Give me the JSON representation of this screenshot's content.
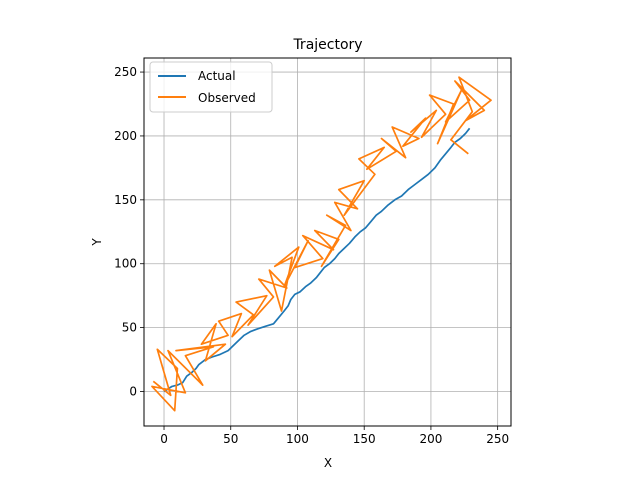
{
  "chart_data": {
    "type": "line",
    "title": "Trajectory",
    "xlabel": "X",
    "ylabel": "Y",
    "xlim": [
      -15,
      260
    ],
    "ylim": [
      -27,
      261
    ],
    "xticks": [
      0,
      50,
      100,
      150,
      200,
      250
    ],
    "yticks": [
      0,
      50,
      100,
      150,
      200,
      250
    ],
    "grid": true,
    "legend_position": "top-left",
    "series": [
      {
        "name": "Actual",
        "color": "#1f77b4",
        "points": [
          [
            0,
            0
          ],
          [
            6,
            4
          ],
          [
            10,
            5
          ],
          [
            14,
            7
          ],
          [
            17,
            12
          ],
          [
            21,
            15
          ],
          [
            24,
            18
          ],
          [
            26,
            21
          ],
          [
            31,
            25
          ],
          [
            36,
            27
          ],
          [
            42,
            29
          ],
          [
            48,
            32
          ],
          [
            54,
            38
          ],
          [
            60,
            44
          ],
          [
            65,
            47
          ],
          [
            70,
            49
          ],
          [
            76,
            51
          ],
          [
            82,
            53
          ],
          [
            86,
            58
          ],
          [
            90,
            63
          ],
          [
            93,
            67
          ],
          [
            95,
            72
          ],
          [
            98,
            76
          ],
          [
            102,
            78
          ],
          [
            106,
            82
          ],
          [
            110,
            85
          ],
          [
            114,
            89
          ],
          [
            117,
            93
          ],
          [
            120,
            97
          ],
          [
            124,
            100
          ],
          [
            128,
            104
          ],
          [
            131,
            108
          ],
          [
            135,
            112
          ],
          [
            139,
            116
          ],
          [
            143,
            121
          ],
          [
            147,
            125
          ],
          [
            151,
            128
          ],
          [
            155,
            133
          ],
          [
            159,
            138
          ],
          [
            163,
            141
          ],
          [
            168,
            146
          ],
          [
            173,
            150
          ],
          [
            178,
            153
          ],
          [
            183,
            158
          ],
          [
            188,
            162
          ],
          [
            193,
            166
          ],
          [
            198,
            170
          ],
          [
            203,
            175
          ],
          [
            207,
            181
          ],
          [
            211,
            186
          ],
          [
            215,
            191
          ],
          [
            218,
            195
          ],
          [
            222,
            198
          ],
          [
            226,
            202
          ],
          [
            229,
            206
          ]
        ]
      },
      {
        "name": "Observed",
        "color": "#ff7f0e",
        "points": [
          [
            -8,
            8
          ],
          [
            5,
            -3
          ],
          [
            -5,
            33
          ],
          [
            10,
            18
          ],
          [
            8,
            -15
          ],
          [
            -9,
            4
          ],
          [
            16,
            -1
          ],
          [
            3,
            32
          ],
          [
            29,
            5
          ],
          [
            16,
            28
          ],
          [
            37,
            35
          ],
          [
            9,
            32
          ],
          [
            46,
            37
          ],
          [
            31,
            24
          ],
          [
            39,
            53
          ],
          [
            28,
            37
          ],
          [
            48,
            44
          ],
          [
            41,
            55
          ],
          [
            58,
            61
          ],
          [
            51,
            43
          ],
          [
            67,
            60
          ],
          [
            54,
            70
          ],
          [
            77,
            75
          ],
          [
            63,
            52
          ],
          [
            82,
            74
          ],
          [
            71,
            88
          ],
          [
            92,
            81
          ],
          [
            79,
            95
          ],
          [
            88,
            63
          ],
          [
            96,
            105
          ],
          [
            83,
            98
          ],
          [
            101,
            113
          ],
          [
            90,
            82
          ],
          [
            108,
            118
          ],
          [
            98,
            97
          ],
          [
            119,
            104
          ],
          [
            104,
            122
          ],
          [
            127,
            111
          ],
          [
            113,
            126
          ],
          [
            131,
            119
          ],
          [
            118,
            98
          ],
          [
            136,
            130
          ],
          [
            122,
            138
          ],
          [
            140,
            126
          ],
          [
            128,
            148
          ],
          [
            145,
            143
          ],
          [
            131,
            158
          ],
          [
            150,
            165
          ],
          [
            135,
            138
          ],
          [
            158,
            170
          ],
          [
            146,
            182
          ],
          [
            165,
            191
          ],
          [
            152,
            174
          ],
          [
            174,
            188
          ],
          [
            163,
            198
          ],
          [
            181,
            183
          ],
          [
            171,
            207
          ],
          [
            191,
            198
          ],
          [
            179,
            192
          ],
          [
            196,
            214
          ],
          [
            185,
            203
          ],
          [
            204,
            220
          ],
          [
            193,
            199
          ],
          [
            211,
            217
          ],
          [
            199,
            232
          ],
          [
            217,
            225
          ],
          [
            205,
            194
          ],
          [
            223,
            236
          ],
          [
            211,
            211
          ],
          [
            229,
            228
          ],
          [
            218,
            243
          ],
          [
            240,
            220
          ],
          [
            226,
            212
          ],
          [
            245,
            228
          ],
          [
            221,
            246
          ],
          [
            231,
            219
          ],
          [
            215,
            197
          ],
          [
            228,
            186
          ]
        ]
      }
    ]
  }
}
